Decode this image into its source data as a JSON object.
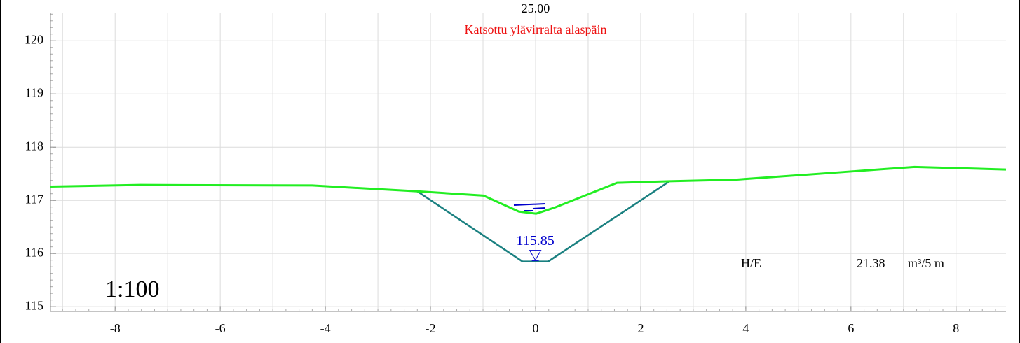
{
  "chart_data": {
    "type": "line",
    "title": "25.00",
    "subtitle": "Katsottu ylävirralta alaspäin",
    "scale_label": "1:100",
    "water_level_label": "115.85",
    "volume_label": "H/E",
    "volume_value": "21.38",
    "volume_unit": "m³/5 m",
    "xlim": [
      -9.23,
      8.95
    ],
    "ylim": [
      114.91,
      120.53
    ],
    "xticks": [
      -8,
      -6,
      -4,
      -2,
      0,
      2,
      4,
      6,
      8
    ],
    "yticks": [
      115,
      116,
      117,
      118,
      119,
      120
    ],
    "grid": true,
    "series": [
      {
        "color": "#22ee22",
        "x": [
          -9.23,
          -7.52,
          -4.25,
          -2.25,
          -0.99,
          -0.32,
          0.01,
          0.35,
          1.55,
          2.55,
          3.81,
          5.81,
          7.21,
          8.95
        ],
        "values": [
          117.26,
          117.29,
          117.28,
          117.17,
          117.09,
          116.79,
          116.75,
          116.86,
          117.33,
          117.36,
          117.39,
          117.53,
          117.63,
          117.58
        ]
      },
      {
        "color": "#1a8080",
        "x": [
          -2.25,
          -0.25,
          0.24,
          2.55
        ],
        "values": [
          117.17,
          115.85,
          115.85,
          117.36
        ]
      }
    ]
  }
}
